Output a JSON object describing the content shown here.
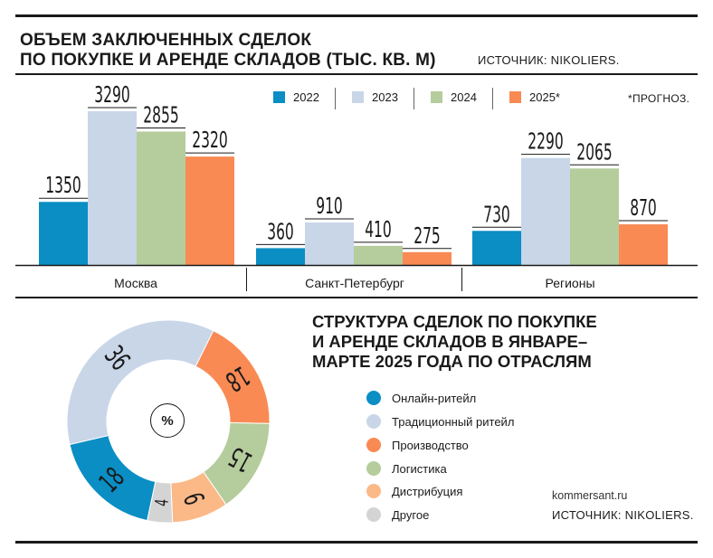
{
  "header": {
    "title_line1": "ОБЪЕМ ЗАКЛЮЧЕННЫХ СДЕЛОК",
    "title_line2": "ПО ПОКУПКЕ И АРЕНДЕ СКЛАДОВ (ТЫС. КВ. М)",
    "source": "ИСТОЧНИК: NIKOLIERS.",
    "forecast_note": "*ПРОГНОЗ."
  },
  "donut_header": {
    "line1": "СТРУКТУРА СДЕЛОК ПО ПОКУПКЕ",
    "line2": "И АРЕНДЕ СКЛАДОВ В ЯНВАРЕ–",
    "line3": "МАРТЕ 2025 ГОДА ПО ОТРАСЛЯМ",
    "center_label": "%"
  },
  "footer": {
    "site": "kommersant.ru",
    "source": "ИСТОЧНИК: NIKOLIERS."
  },
  "chart_data": [
    {
      "type": "bar",
      "title": "ОБЪЕМ ЗАКЛЮЧЕННЫХ СДЕЛОК ПО ПОКУПКЕ И АРЕНДЕ СКЛАДОВ (ТЫС. КВ. М)",
      "categories": [
        "Москва",
        "Санкт-Петербург",
        "Регионы"
      ],
      "series": [
        {
          "name": "2022",
          "color": "#0a8ec4",
          "values": [
            1350,
            360,
            730
          ]
        },
        {
          "name": "2023",
          "color": "#c8d6e8",
          "values": [
            3290,
            910,
            2290
          ]
        },
        {
          "name": "2024",
          "color": "#b5cc9c",
          "values": [
            2855,
            410,
            2065
          ]
        },
        {
          "name": "2025*",
          "color": "#f98a54",
          "values": [
            2320,
            275,
            870
          ]
        }
      ],
      "ylim": [
        0,
        3290
      ],
      "grid": false,
      "legend": "top"
    },
    {
      "type": "pie",
      "title": "СТРУКТУРА СДЕЛОК ПО ПОКУПКЕ И АРЕНДЕ СКЛАДОВ В ЯНВАРЕ–МАРТЕ 2025 ГОДА ПО ОТРАСЛЯМ",
      "unit": "%",
      "slices": [
        {
          "label": "Онлайн-ритейл",
          "value": 18,
          "color": "#0a8ec4"
        },
        {
          "label": "Традиционный ритейл",
          "value": 36,
          "color": "#c8d6e8"
        },
        {
          "label": "Производство",
          "value": 18,
          "color": "#f98a54"
        },
        {
          "label": "Логистика",
          "value": 15,
          "color": "#b5cc9c"
        },
        {
          "label": "Дистрибуция",
          "value": 9,
          "color": "#fbb988"
        },
        {
          "label": "Другое",
          "value": 4,
          "color": "#d4d4d4"
        }
      ],
      "legend": "right"
    }
  ]
}
